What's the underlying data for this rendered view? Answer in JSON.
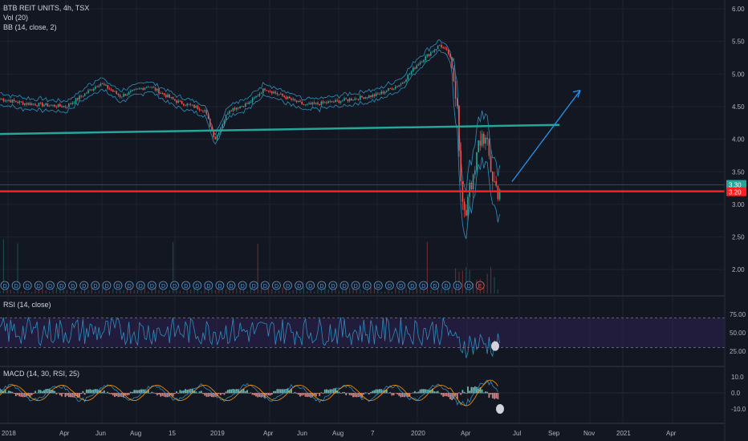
{
  "header": {
    "title": "BTB REIT UNITS, 4h, TSX",
    "volume_label": "Vol (20)",
    "bb_label": "BB (14, close, 2)"
  },
  "rsi": {
    "label": "RSI (14, close)",
    "ticks": [
      "75.00",
      "50.00",
      "25.00"
    ],
    "upper_band": 70,
    "lower_band": 30
  },
  "macd": {
    "label": "MACD (14, 30, RSI, 25)",
    "ticks": [
      "10.0",
      "0.0",
      "-10.0"
    ]
  },
  "colors": {
    "background": "#131722",
    "candle_up": "#26a69a",
    "candle_down": "#ef5350",
    "bb_line": "#2f9fcf",
    "support_line": "#ff1f1f",
    "trend_line": "#26a69a",
    "projection_arrow": "#2196f3",
    "rsi_line": "#2f8fc0",
    "rsi_band_fill": "#2e1f52",
    "macd_line": "#2f8fc0",
    "signal_line": "#ff9800",
    "dividend_marker": "#5b9bd5",
    "earnings_marker": "#e06666"
  },
  "price_tags": {
    "current": "3.30",
    "support": "3.20"
  },
  "dividend_marker_letter": "D",
  "earnings_marker_letter": "E",
  "chart_data": {
    "type": "candlestick",
    "title": "BTB REIT UNITS, 4h, TSX",
    "y_ticks": [
      "6.00",
      "5.50",
      "5.00",
      "4.50",
      "4.00",
      "3.50",
      "3.00",
      "2.50",
      "2.00"
    ],
    "ylim": [
      1.8,
      6.1
    ],
    "x_labels": [
      "2018",
      "Apr",
      "Jun",
      "Aug",
      "15",
      "2019",
      "Apr",
      "Jun",
      "Aug",
      "7",
      "2020",
      "Apr",
      "Jul",
      "Sep",
      "Nov",
      "2021",
      "Apr"
    ],
    "series": [
      {
        "name": "price",
        "points": [
          [
            "2018",
            4.62
          ],
          [
            "Apr",
            4.55
          ],
          [
            "Jun",
            4.86
          ],
          [
            "Aug",
            4.6
          ],
          [
            "15",
            4.62
          ],
          [
            "2019",
            4.0
          ],
          [
            "Apr",
            4.55
          ],
          [
            "Jun",
            4.58
          ],
          [
            "Aug",
            4.5
          ],
          [
            "7",
            4.75
          ],
          [
            "2020",
            5.45
          ],
          [
            "Apr",
            2.7
          ],
          [
            "Apr",
            3.3
          ]
        ]
      }
    ],
    "horizontal_lines": [
      {
        "level": 3.2,
        "color": "#ff1f1f"
      }
    ],
    "trend_line": {
      "from": 4.08,
      "to": 4.22
    },
    "projection": {
      "from": 3.35,
      "to": 4.75
    },
    "rsi_reference_levels": [
      70,
      30
    ],
    "macd_range": [
      -10,
      10
    ]
  }
}
